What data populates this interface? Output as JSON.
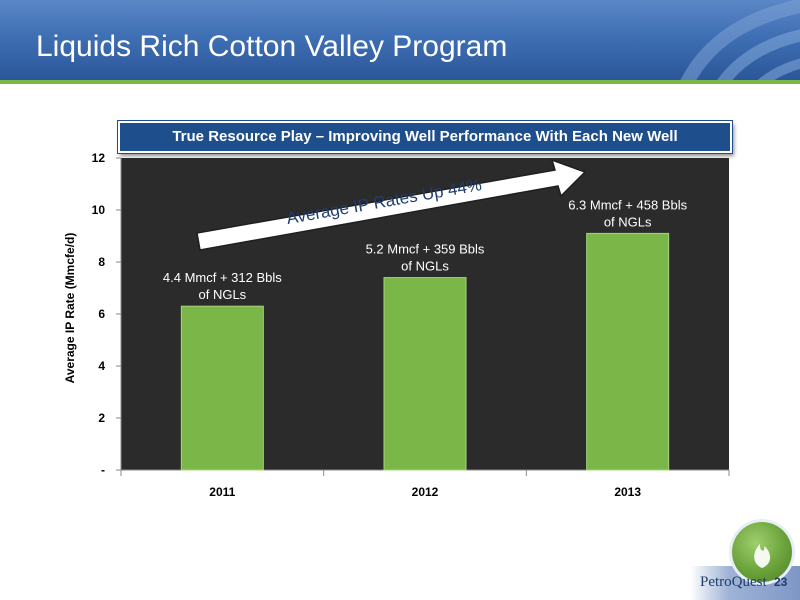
{
  "slide": {
    "title": "Liquids Rich Cotton Valley Program",
    "banner": "True Resource Play – Improving Well Performance With Each New Well",
    "arrow_text": "Average IP Rates Up 44%",
    "brand": "PetroQuest",
    "page_number": "23"
  },
  "colors": {
    "header": "#3f6fb4",
    "accent_green": "#7ab648",
    "plot_background": "#2b2b2b",
    "bar": "#7ab648",
    "banner": "#1f4e8c"
  },
  "icons": {
    "header": "swoosh-graphic",
    "logo": "flame-icon"
  },
  "chart_data": {
    "type": "bar",
    "title": "",
    "xlabel": "",
    "ylabel": "Average IP Rate (Mmcfe/d)",
    "categories": [
      "2011",
      "2012",
      "2013"
    ],
    "values": [
      6.3,
      7.4,
      9.1
    ],
    "data_labels": [
      [
        "4.4 Mmcf + 312 Bbls",
        "of NGLs"
      ],
      [
        "5.2 Mmcf + 359 Bbls",
        "of NGLs"
      ],
      [
        "6.3 Mmcf + 458 Bbls",
        "of NGLs"
      ]
    ],
    "ylim": [
      0,
      12
    ],
    "yticks": [
      0,
      2,
      4,
      6,
      8,
      10,
      12
    ],
    "ytick_labels": [
      "-",
      "2",
      "4",
      "6",
      "8",
      "10",
      "12"
    ],
    "grid": false,
    "legend": "none"
  }
}
